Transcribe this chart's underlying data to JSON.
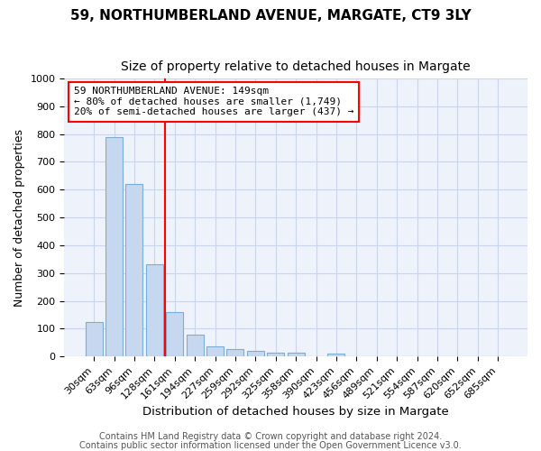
{
  "title1": "59, NORTHUMBERLAND AVENUE, MARGATE, CT9 3LY",
  "title2": "Size of property relative to detached houses in Margate",
  "xlabel": "Distribution of detached houses by size in Margate",
  "ylabel": "Number of detached properties",
  "categories": [
    "30sqm",
    "63sqm",
    "96sqm",
    "128sqm",
    "161sqm",
    "194sqm",
    "227sqm",
    "259sqm",
    "292sqm",
    "325sqm",
    "358sqm",
    "390sqm",
    "423sqm",
    "456sqm",
    "489sqm",
    "521sqm",
    "554sqm",
    "587sqm",
    "620sqm",
    "652sqm",
    "685sqm"
  ],
  "values": [
    125,
    790,
    620,
    330,
    160,
    78,
    38,
    27,
    20,
    15,
    13,
    0,
    10,
    0,
    0,
    0,
    0,
    0,
    0,
    0,
    0
  ],
  "bar_color": "#c5d8f0",
  "bar_edgecolor": "#7aaed6",
  "redline_index": 4,
  "ylim": [
    0,
    1000
  ],
  "yticks": [
    0,
    100,
    200,
    300,
    400,
    500,
    600,
    700,
    800,
    900,
    1000
  ],
  "annotation_text": "59 NORTHUMBERLAND AVENUE: 149sqm\n← 80% of detached houses are smaller (1,749)\n20% of semi-detached houses are larger (437) →",
  "annotation_box_facecolor": "white",
  "annotation_box_edgecolor": "red",
  "footer_text1": "Contains HM Land Registry data © Crown copyright and database right 2024.",
  "footer_text2": "Contains public sector information licensed under the Open Government Licence v3.0.",
  "background_color": "#ffffff",
  "plot_bg_color": "#eef2fb",
  "grid_color": "#c8d4f0",
  "title1_fontsize": 11,
  "title2_fontsize": 10,
  "xlabel_fontsize": 9.5,
  "ylabel_fontsize": 9,
  "tick_fontsize": 8,
  "annotation_fontsize": 8,
  "footer_fontsize": 7
}
